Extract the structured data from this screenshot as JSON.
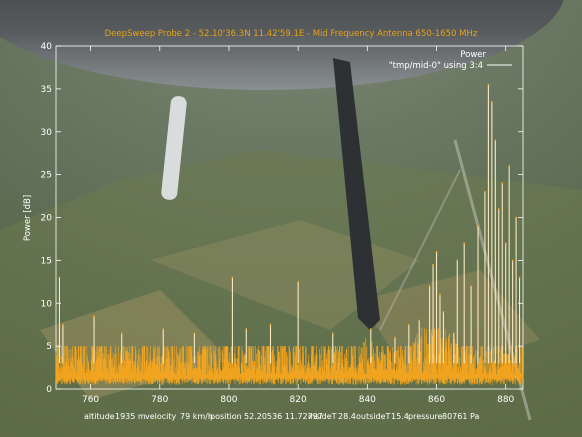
{
  "chart_data": {
    "type": "line",
    "title": "DeepSweep Probe 2 - 52.10'36.3N 11.42'59.1E - Mid Frequency Antenna 650-1650 MHz",
    "ylabel": "Power [dB]",
    "xlabel": "",
    "xlim": [
      750,
      885
    ],
    "ylim": [
      0,
      40
    ],
    "x_ticks": [
      760,
      780,
      800,
      820,
      840,
      860,
      880
    ],
    "y_ticks": [
      0,
      5,
      10,
      15,
      20,
      25,
      30,
      35,
      40
    ],
    "grid": false,
    "legend_position": "top-right",
    "color": "#f7a51c",
    "series": [
      {
        "name": "\"tmp/mid-0\" using 3:4",
        "baseline_range": [
          0.5,
          5.0
        ],
        "spikes": [
          {
            "x": 751,
            "y": 13.0
          },
          {
            "x": 752,
            "y": 7.5
          },
          {
            "x": 761,
            "y": 8.5
          },
          {
            "x": 769,
            "y": 6.5
          },
          {
            "x": 781,
            "y": 7.0
          },
          {
            "x": 790,
            "y": 6.5
          },
          {
            "x": 801,
            "y": 13.0
          },
          {
            "x": 805,
            "y": 7.0
          },
          {
            "x": 812,
            "y": 7.5
          },
          {
            "x": 820,
            "y": 12.5
          },
          {
            "x": 830,
            "y": 6.5
          },
          {
            "x": 841,
            "y": 7.0
          },
          {
            "x": 848,
            "y": 6.0
          },
          {
            "x": 852,
            "y": 7.5
          },
          {
            "x": 855,
            "y": 8.0
          },
          {
            "x": 858,
            "y": 12.0
          },
          {
            "x": 859,
            "y": 14.5
          },
          {
            "x": 860,
            "y": 16.0
          },
          {
            "x": 861,
            "y": 11.0
          },
          {
            "x": 862,
            "y": 9.0
          },
          {
            "x": 865,
            "y": 6.5
          },
          {
            "x": 866,
            "y": 15.0
          },
          {
            "x": 868,
            "y": 17.0
          },
          {
            "x": 870,
            "y": 12.0
          },
          {
            "x": 872,
            "y": 19.0
          },
          {
            "x": 874,
            "y": 23.0
          },
          {
            "x": 875,
            "y": 35.5
          },
          {
            "x": 876,
            "y": 33.5
          },
          {
            "x": 877,
            "y": 29.0
          },
          {
            "x": 878,
            "y": 21.0
          },
          {
            "x": 879,
            "y": 24.0
          },
          {
            "x": 880,
            "y": 17.0
          },
          {
            "x": 881,
            "y": 26.0
          },
          {
            "x": 882,
            "y": 15.0
          },
          {
            "x": 883,
            "y": 20.0
          },
          {
            "x": 884,
            "y": 13.0
          }
        ]
      }
    ]
  },
  "footer": {
    "altitude_label": "altitude",
    "altitude_value": "1935 m",
    "velocity_label": "velocity",
    "velocity_value": "79 km/h",
    "position_label": "position",
    "position_value": "52.20536 11.72797",
    "insideT_label": "insideT",
    "insideT_value": "28.4",
    "outsideT_label": "outsideT",
    "outsideT_value": "15.4",
    "pressure_label": "pressure",
    "pressure_value": "80761 Pa"
  }
}
